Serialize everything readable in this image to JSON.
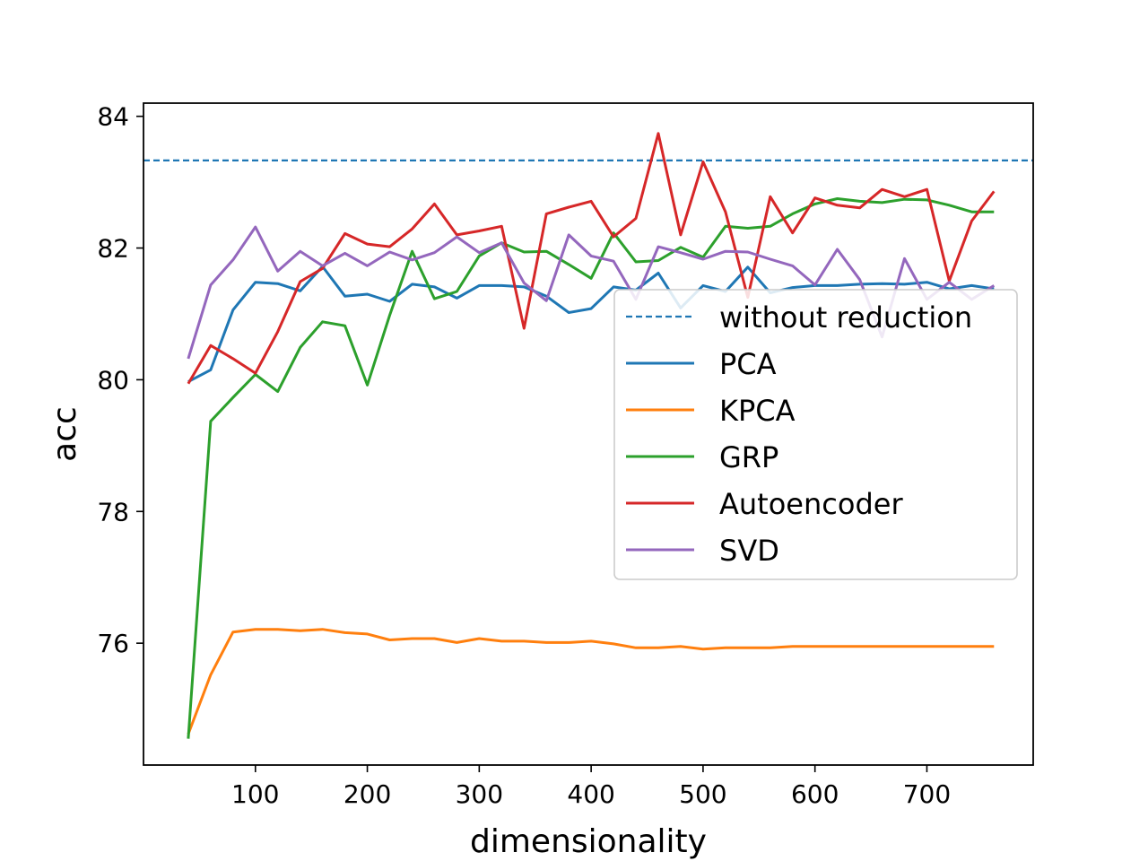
{
  "chart_data": {
    "type": "line",
    "title": "",
    "xlabel": "dimensionality",
    "ylabel": "acc",
    "xlim": [
      0,
      795
    ],
    "ylim": [
      74.15,
      84.2
    ],
    "xticks": [
      100,
      200,
      300,
      400,
      500,
      600,
      700
    ],
    "yticks": [
      76,
      78,
      80,
      82,
      84
    ],
    "grid": false,
    "legend_position": "center-right",
    "x": [
      40,
      60,
      80,
      100,
      120,
      140,
      160,
      180,
      200,
      220,
      240,
      260,
      280,
      300,
      320,
      340,
      360,
      380,
      400,
      420,
      440,
      460,
      480,
      500,
      520,
      540,
      560,
      580,
      600,
      620,
      640,
      660,
      680,
      700,
      720,
      740,
      760
    ],
    "reference": {
      "name": "without reduction",
      "value": 83.33,
      "color": "#1f77b4",
      "style": "dashed"
    },
    "series": [
      {
        "name": "PCA",
        "color": "#1f77b4",
        "values": [
          79.97,
          80.15,
          81.06,
          81.48,
          81.46,
          81.35,
          81.72,
          81.27,
          81.3,
          81.19,
          81.45,
          81.41,
          81.24,
          81.43,
          81.43,
          81.41,
          81.27,
          81.02,
          81.08,
          81.41,
          81.36,
          81.62,
          81.09,
          81.43,
          81.34,
          81.71,
          81.32,
          81.4,
          81.43,
          81.43,
          81.45,
          81.46,
          81.45,
          81.48,
          81.38,
          81.43,
          81.38
        ]
      },
      {
        "name": "KPCA",
        "color": "#ff7f0e",
        "values": [
          74.62,
          75.52,
          76.17,
          76.21,
          76.21,
          76.19,
          76.21,
          76.16,
          76.14,
          76.05,
          76.07,
          76.07,
          76.01,
          76.07,
          76.03,
          76.03,
          76.01,
          76.01,
          76.03,
          75.99,
          75.93,
          75.93,
          75.95,
          75.91,
          75.93,
          75.93,
          75.93,
          75.95,
          75.95,
          75.95,
          75.95,
          75.95,
          75.95,
          75.95,
          75.95,
          75.95,
          75.95
        ]
      },
      {
        "name": "GRP",
        "color": "#2ca02c",
        "values": [
          74.55,
          79.37,
          79.73,
          80.08,
          79.82,
          80.49,
          80.88,
          80.82,
          79.92,
          80.98,
          81.95,
          81.23,
          81.34,
          81.88,
          82.08,
          81.94,
          81.95,
          81.75,
          81.54,
          82.23,
          81.79,
          81.81,
          82.01,
          81.86,
          82.33,
          82.3,
          82.33,
          82.52,
          82.67,
          82.75,
          82.71,
          82.69,
          82.74,
          82.73,
          82.65,
          82.55,
          82.55
        ]
      },
      {
        "name": "Autoencoder",
        "color": "#d62728",
        "values": [
          79.94,
          80.52,
          80.32,
          80.1,
          80.73,
          81.49,
          81.69,
          82.22,
          82.06,
          82.02,
          82.29,
          82.67,
          82.2,
          82.26,
          82.33,
          80.78,
          82.52,
          82.62,
          82.71,
          82.17,
          82.45,
          83.74,
          82.2,
          83.31,
          82.55,
          81.25,
          82.78,
          82.23,
          82.76,
          82.65,
          82.61,
          82.89,
          82.78,
          82.89,
          81.5,
          82.41,
          82.86
        ]
      },
      {
        "name": "SVD",
        "color": "#9467bd",
        "values": [
          80.32,
          81.44,
          81.82,
          82.32,
          81.65,
          81.95,
          81.73,
          81.92,
          81.73,
          81.94,
          81.82,
          81.93,
          82.17,
          81.93,
          82.08,
          81.47,
          81.2,
          82.2,
          81.88,
          81.8,
          81.22,
          82.02,
          81.93,
          81.83,
          81.95,
          81.94,
          81.83,
          81.73,
          81.44,
          81.98,
          81.52,
          80.65,
          81.84,
          81.22,
          81.48,
          81.22,
          81.43
        ]
      }
    ]
  }
}
